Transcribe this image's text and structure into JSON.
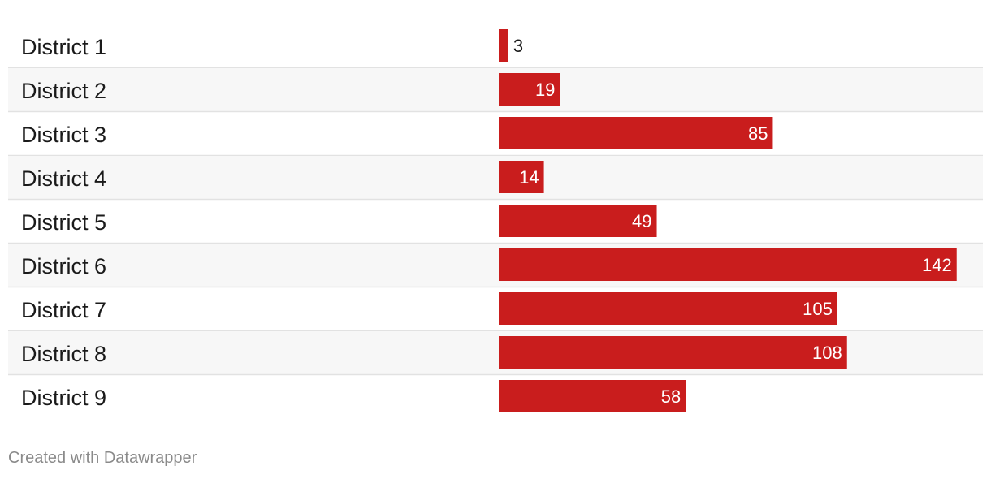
{
  "chart_data": {
    "type": "bar",
    "orientation": "horizontal",
    "categories": [
      "District 1",
      "District 2",
      "District 3",
      "District 4",
      "District 5",
      "District 6",
      "District 7",
      "District 8",
      "District 9"
    ],
    "values": [
      3,
      19,
      85,
      14,
      49,
      142,
      105,
      108,
      58
    ],
    "xlim": [
      0,
      150
    ],
    "bar_color": "#c91d1d",
    "stripe_color": "#f7f7f7",
    "grid": false,
    "value_labels": true
  },
  "footer": {
    "credit": "Created with Datawrapper"
  }
}
